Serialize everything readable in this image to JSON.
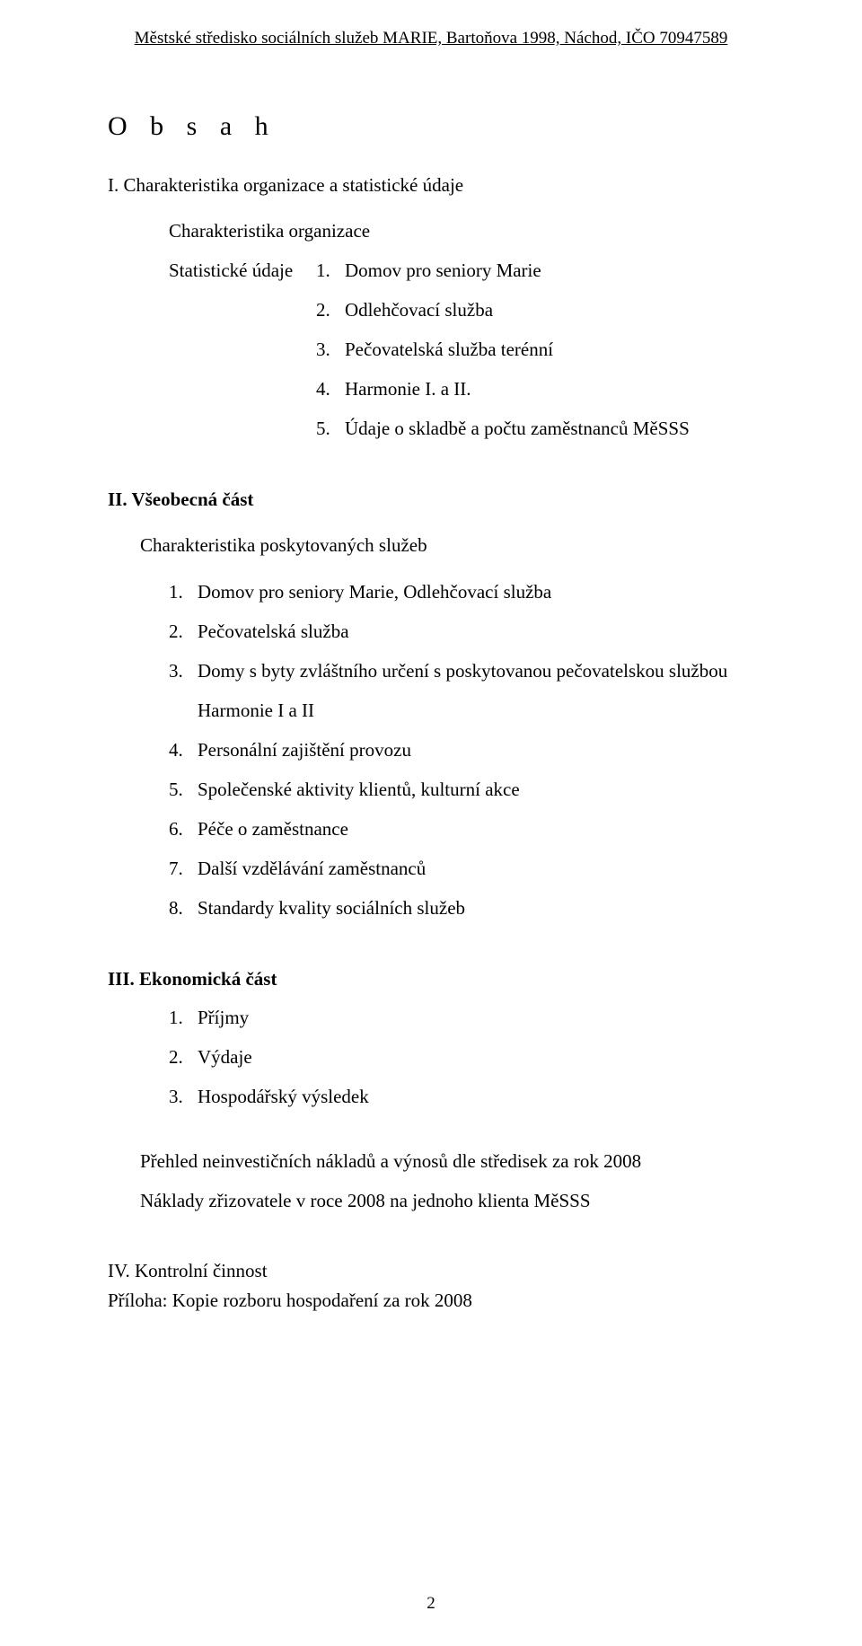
{
  "header": "Městské středisko sociálních služeb MARIE, Bartoňova 1998, Náchod, IČO 70947589",
  "title": "O b s a h",
  "section1": {
    "heading": "I. Charakteristika organizace a statistické údaje",
    "sub1": "Charakteristika organizace",
    "sub2": "Statistické údaje",
    "items": [
      {
        "num": "1.",
        "text": "Domov pro seniory Marie"
      },
      {
        "num": "2.",
        "text": "Odlehčovací služba"
      },
      {
        "num": "3.",
        "text": "Pečovatelská služba terénní"
      },
      {
        "num": "4.",
        "text": "Harmonie I. a II."
      },
      {
        "num": "5.",
        "text": "Údaje o skladbě a počtu zaměstnanců MěSSS"
      }
    ]
  },
  "section2": {
    "heading": "II. Všeobecná část",
    "sub": "Charakteristika poskytovaných služeb",
    "items": [
      {
        "num": "1.",
        "text": "Domov pro seniory Marie, Odlehčovací služba"
      },
      {
        "num": "2.",
        "text": "Pečovatelská služba"
      },
      {
        "num": "3.",
        "text": "Domy s byty zvláštního určení s poskytovanou pečovatelskou službou",
        "cont": "Harmonie I a II"
      },
      {
        "num": "4.",
        "text": "Personální zajištění provozu"
      },
      {
        "num": "5.",
        "text": "Společenské aktivity klientů, kulturní akce"
      },
      {
        "num": "6.",
        "text": "Péče o zaměstnance"
      },
      {
        "num": "7.",
        "text": "Další vzdělávání zaměstnanců"
      },
      {
        "num": "8.",
        "text": "Standardy  kvality sociálních služeb"
      }
    ]
  },
  "section3": {
    "heading": "III. Ekonomická část",
    "items": [
      {
        "num": "1.",
        "text": "Příjmy"
      },
      {
        "num": "2.",
        "text": "Výdaje"
      },
      {
        "num": "3.",
        "text": "Hospodářský výsledek"
      }
    ],
    "para1": "Přehled neinvestičních nákladů a výnosů dle středisek za rok 2008",
    "para2": "Náklady zřizovatele v roce 2008 na jednoho klienta MěSSS"
  },
  "section4": {
    "heading": "IV. Kontrolní činnost",
    "attachment": "Příloha:  Kopie rozboru hospodaření za rok  2008"
  },
  "pageNumber": "2"
}
